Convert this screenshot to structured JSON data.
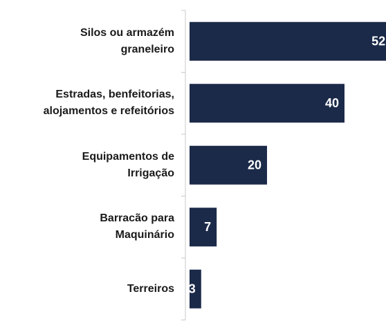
{
  "chart_data": {
    "type": "bar",
    "orientation": "horizontal",
    "categories": [
      "Silos ou armazém\ngraneleiro",
      "Estradas, benfeitorias,\nalojamentos e refeitórios",
      "Equipamentos de\nIrrigação",
      "Barracão para\nMaquinário",
      "Terreiros"
    ],
    "values": [
      52,
      40,
      20,
      7,
      3
    ],
    "color": "#1b2a49"
  }
}
